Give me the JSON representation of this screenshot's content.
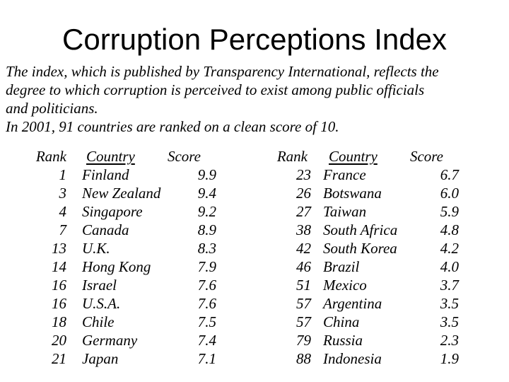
{
  "title": "Corruption Perceptions Index",
  "intro": {
    "lines": [
      "The index, which is published by Transparency International, reflects the",
      "degree to which corruption is perceived to exist among public officials",
      "and politicians.",
      "In 2001, 91 countries are ranked on a clean score of 10."
    ]
  },
  "table": {
    "headers": {
      "rank": "Rank",
      "country": "Country",
      "score": "Score"
    },
    "left_rows": [
      {
        "rank": "1",
        "country": "Finland",
        "score": "9.9"
      },
      {
        "rank": "3",
        "country": "New Zealand",
        "score": "9.4"
      },
      {
        "rank": "4",
        "country": "Singapore",
        "score": "9.2"
      },
      {
        "rank": "7",
        "country": "Canada",
        "score": "8.9"
      },
      {
        "rank": "13",
        "country": "U.K.",
        "score": "8.3"
      },
      {
        "rank": "14",
        "country": "Hong Kong",
        "score": "7.9"
      },
      {
        "rank": "16",
        "country": "Israel",
        "score": "7.6"
      },
      {
        "rank": "16",
        "country": "U.S.A.",
        "score": "7.6"
      },
      {
        "rank": "18",
        "country": "Chile",
        "score": "7.5"
      },
      {
        "rank": "20",
        "country": "Germany",
        "score": "7.4"
      },
      {
        "rank": "21",
        "country": "Japan",
        "score": "7.1"
      }
    ],
    "right_rows": [
      {
        "rank": "23",
        "country": "France",
        "score": "6.7"
      },
      {
        "rank": "26",
        "country": "Botswana",
        "score": "6.0"
      },
      {
        "rank": "27",
        "country": "Taiwan",
        "score": "5.9"
      },
      {
        "rank": "38",
        "country": "South Africa",
        "score": "4.8"
      },
      {
        "rank": "42",
        "country": "South Korea",
        "score": "4.2"
      },
      {
        "rank": "46",
        "country": "Brazil",
        "score": "4.0"
      },
      {
        "rank": "51",
        "country": "Mexico",
        "score": "3.7"
      },
      {
        "rank": "57",
        "country": "Argentina",
        "score": "3.5"
      },
      {
        "rank": "57",
        "country": "China",
        "score": "3.5"
      },
      {
        "rank": "79",
        "country": "Russia",
        "score": "2.3"
      },
      {
        "rank": "88",
        "country": "Indonesia",
        "score": "1.9"
      }
    ]
  }
}
